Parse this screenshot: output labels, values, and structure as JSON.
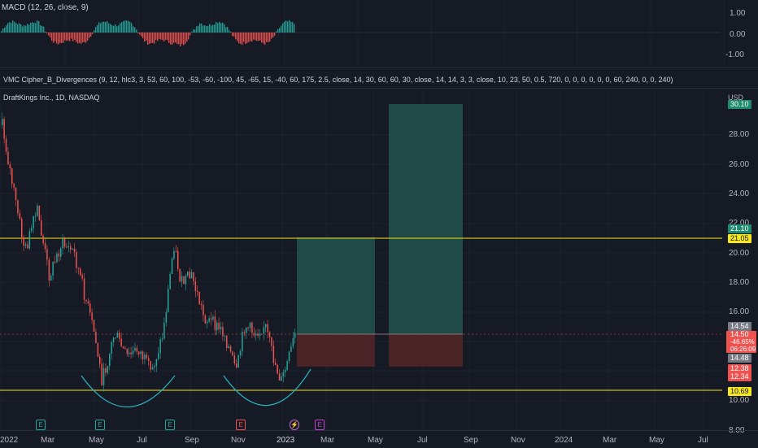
{
  "macd": {
    "label": "MACD (12, 26, close, 9)",
    "axis": [
      "1.00",
      "0.00",
      "-1.00"
    ]
  },
  "vmc": {
    "label": "VMC Cipher_B_Divergences (9, 12, hlc3, 3, 53, 60, 100, -53, -60, -100, 45, -65, 15, -40, 60, 175, 2.5, close, 14, 30, 60, 60, 30, close, 14, 14, 3, 3, close, 10, 23, 50, 0.5, 720, 0, 0, 0, 0, 0, 0, 60, 240, 0, 0, 240)"
  },
  "main": {
    "symbol": "DraftKings Inc., 1D, NASDAQ",
    "currency": "USD",
    "price_axis": [
      "28.00",
      "26.00",
      "24.00",
      "22.00",
      "20.00",
      "18.00",
      "16.00",
      "10.00",
      "8.00"
    ],
    "tags": {
      "top": "30.10",
      "tp1": "21.10",
      "hline_upper": "21.05",
      "p1": "14.54",
      "last_price": "14.50",
      "last_change": "-46.65%",
      "countdown": "06:26:09",
      "p2": "14.48",
      "stop1": "12.38",
      "stop2": "12.34",
      "hline_lower": "10.69"
    }
  },
  "time_axis": [
    "2022",
    "Mar",
    "May",
    "Jul",
    "Sep",
    "Nov",
    "2023",
    "Mar",
    "May",
    "Jul",
    "Sep",
    "Nov",
    "2024",
    "Mar",
    "May",
    "Jul"
  ],
  "events": [
    {
      "glyph": "E",
      "kind": "earnings-past"
    },
    {
      "glyph": "E",
      "kind": "earnings-past"
    },
    {
      "glyph": "E",
      "kind": "earnings-past"
    },
    {
      "glyph": "E",
      "kind": "earnings-past-red"
    },
    {
      "glyph": "⚡",
      "kind": "split"
    },
    {
      "glyph": "E",
      "kind": "earnings-future"
    }
  ],
  "colors": {
    "up": "#26a69a",
    "down": "#ef5350",
    "hline": "#f5e61e",
    "target_zone": "#1f4a46",
    "stop_zone": "#4a2326",
    "arc": "#2ab3c4"
  }
}
